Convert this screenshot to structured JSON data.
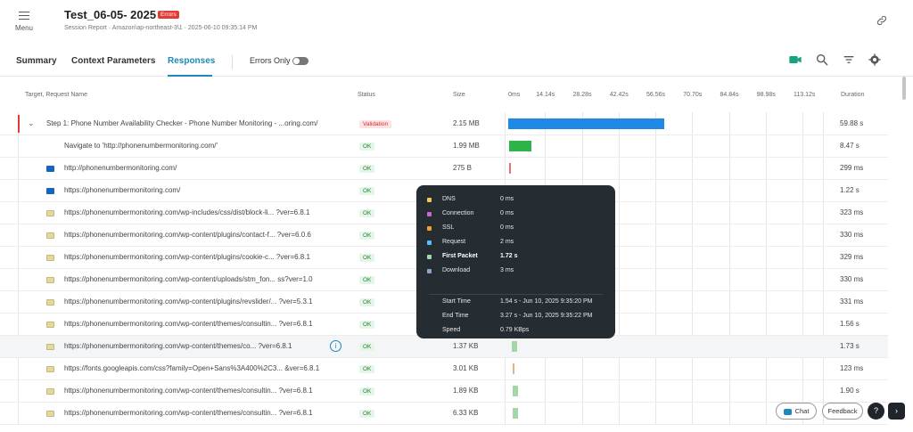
{
  "header": {
    "menu_label": "Menu",
    "title": "Test_06-05- 2025",
    "errors_badge": "Errors",
    "subtitle": "Session Report · Amazon\\ap-northeast-3\\1 · 2025-06-10 09:35:14 PM"
  },
  "tabs": [
    {
      "label": "Summary",
      "active": false
    },
    {
      "label": "Context Parameters",
      "active": false
    },
    {
      "label": "Responses",
      "active": true
    }
  ],
  "toolbar": {
    "errors_only_label": "Errors Only",
    "errors_only_on": false,
    "icons": [
      "video-icon",
      "search-icon",
      "filter-icon",
      "settings-icon"
    ]
  },
  "columns": {
    "name": "Target, Request Name",
    "status": "Status",
    "size": "Size",
    "duration": "Duration"
  },
  "timeline_ticks": [
    "0ms",
    "14.14s",
    "28.28s",
    "42.42s",
    "56.56s",
    "70.70s",
    "84.84s",
    "98.98s",
    "113.12s"
  ],
  "timeline_max_seconds": 113.12,
  "rows": [
    {
      "kind": "step",
      "name": "Step 1: Phone Number Availability Checker - Phone Number Monitoring - ...oring.com/",
      "status": "Validation",
      "size": "2.15 MB",
      "duration": "59.88 s",
      "bar_start_s": 0.0,
      "bar_len_s": 59.88,
      "bar_color": "#1e88e5"
    },
    {
      "kind": "nav",
      "name": "Navigate to 'http://phonenumbermonitoring.com/'",
      "status": "OK",
      "size": "1.99 MB",
      "duration": "8.47 s",
      "bar_start_s": 0.3,
      "bar_len_s": 8.47,
      "bar_color": "#2db34a"
    },
    {
      "kind": "html",
      "name": "http://phonenumbermonitoring.com/",
      "status": "OK",
      "size": "275 B",
      "duration": "299 ms",
      "bar_start_s": 0.3,
      "bar_len_s": 0.5,
      "bar_color": "#e57373"
    },
    {
      "kind": "html",
      "name": "https://phonenumbermonitoring.com/",
      "status": "OK",
      "size": "",
      "duration": "1.22 s",
      "bar_start_s": 0.0,
      "bar_len_s": 0.0,
      "bar_color": "#aed581"
    },
    {
      "kind": "doc",
      "name": "https://phonenumbermonitoring.com/wp-includes/css/dist/block-li... ?ver=6.8.1",
      "status": "OK",
      "size": "",
      "duration": "323 ms",
      "bar_start_s": 0.0,
      "bar_len_s": 0.0,
      "bar_color": "#aed581"
    },
    {
      "kind": "doc",
      "name": "https://phonenumbermonitoring.com/wp-content/plugins/contact-f... ?ver=6.0.6",
      "status": "OK",
      "size": "",
      "duration": "330 ms",
      "bar_start_s": 0.0,
      "bar_len_s": 0.0,
      "bar_color": "#aed581"
    },
    {
      "kind": "doc",
      "name": "https://phonenumbermonitoring.com/wp-content/plugins/cookie-c... ?ver=6.8.1",
      "status": "OK",
      "size": "",
      "duration": "329 ms",
      "bar_start_s": 0.0,
      "bar_len_s": 0.0,
      "bar_color": "#aed581"
    },
    {
      "kind": "doc",
      "name": "https://phonenumbermonitoring.com/wp-content/uploads/stm_fon... ss?ver=1.0",
      "status": "OK",
      "size": "",
      "duration": "330 ms",
      "bar_start_s": 0.0,
      "bar_len_s": 0.0,
      "bar_color": "#aed581"
    },
    {
      "kind": "doc",
      "name": "https://phonenumbermonitoring.com/wp-content/plugins/revslider/... ?ver=5.3.1",
      "status": "OK",
      "size": "",
      "duration": "331 ms",
      "bar_start_s": 0.0,
      "bar_len_s": 0.0,
      "bar_color": "#aed581"
    },
    {
      "kind": "doc",
      "name": "https://phonenumbermonitoring.com/wp-content/themes/consultin... ?ver=6.8.1",
      "status": "OK",
      "size": "",
      "duration": "1.56 s",
      "bar_start_s": 0.0,
      "bar_len_s": 0.0,
      "bar_color": "#aed581"
    },
    {
      "kind": "doc",
      "name": "https://phonenumbermonitoring.com/wp-content/themes/co... ?ver=6.8.1",
      "status": "OK",
      "size": "1.37 KB",
      "duration": "1.73 s",
      "bar_start_s": 1.54,
      "bar_len_s": 1.73,
      "bar_color": "#a5d6a7",
      "highlight": true
    },
    {
      "kind": "doc",
      "name": "https://fonts.googleapis.com/css?family=Open+Sans%3A400%2C3... &ver=6.8.1",
      "status": "OK",
      "size": "3.01 KB",
      "duration": "123 ms",
      "bar_start_s": 1.6,
      "bar_len_s": 0.5,
      "bar_color": "#e0b28a"
    },
    {
      "kind": "doc",
      "name": "https://phonenumbermonitoring.com/wp-content/themes/consultin... ?ver=6.8.1",
      "status": "OK",
      "size": "1.89 KB",
      "duration": "1.90 s",
      "bar_start_s": 1.6,
      "bar_len_s": 1.9,
      "bar_color": "#a5d6a7"
    },
    {
      "kind": "doc",
      "name": "https://phonenumbermonitoring.com/wp-content/themes/consultin... ?ver=6.8.1",
      "status": "OK",
      "size": "6.33 KB",
      "duration": "",
      "bar_start_s": 1.6,
      "bar_len_s": 1.9,
      "bar_color": "#a5d6a7"
    }
  ],
  "tooltip": {
    "phases": [
      {
        "label": "DNS",
        "value": "0 ms",
        "color": "#f6c453"
      },
      {
        "label": "Connection",
        "value": "0 ms",
        "color": "#c86ad6"
      },
      {
        "label": "SSL",
        "value": "0 ms",
        "color": "#f0a030"
      },
      {
        "label": "Request",
        "value": "2 ms",
        "color": "#4fc3f7"
      },
      {
        "label": "First Packet",
        "value": "1.72 s",
        "color": "#a5d6a7",
        "bold": true
      },
      {
        "label": "Download",
        "value": "3 ms",
        "color": "#90a4c8"
      }
    ],
    "start_time_label": "Start Time",
    "start_time": "1.54 s - Jun 10, 2025 9:35:20 PM",
    "end_time_label": "End Time",
    "end_time": "3.27 s - Jun 10, 2025 9:35:22 PM",
    "speed_label": "Speed",
    "speed": "0.79 KBps"
  },
  "footer": {
    "chat_label": "Chat",
    "feedback_label": "Feedback"
  }
}
